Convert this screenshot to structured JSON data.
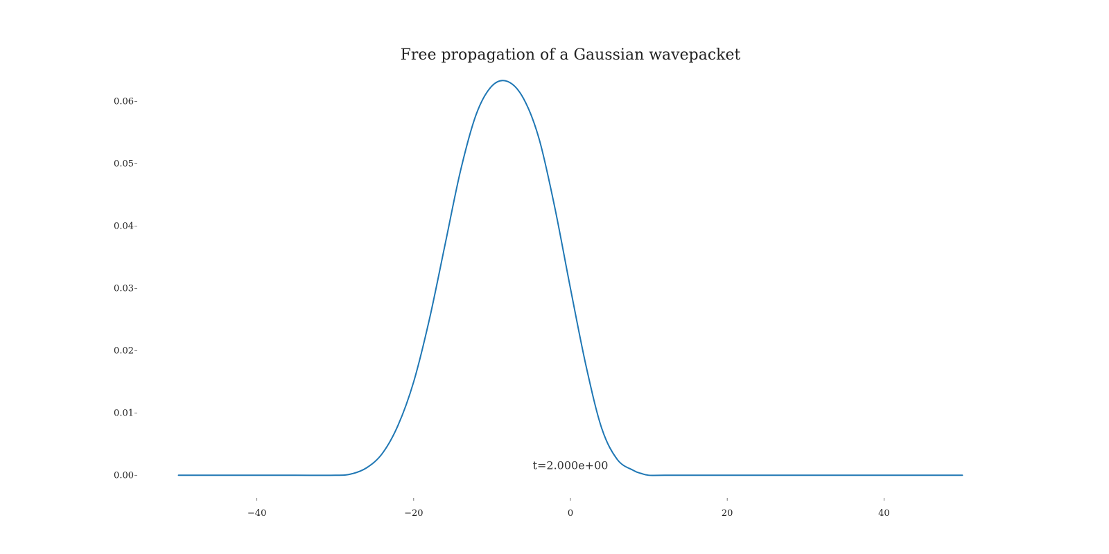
{
  "chart_data": {
    "type": "line",
    "title": "Free propagation of a Gaussian wavepacket",
    "xlabel": "",
    "ylabel": "",
    "xlim": [
      -55,
      55
    ],
    "ylim": [
      -0.0033,
      0.0655
    ],
    "x_ticks": [
      -40,
      -20,
      0,
      20,
      40
    ],
    "x_tick_labels": [
      "−40",
      "−20",
      "0",
      "20",
      "40"
    ],
    "y_ticks": [
      0.0,
      0.01,
      0.02,
      0.03,
      0.04,
      0.05,
      0.06
    ],
    "y_tick_labels": [
      "0.00",
      "0.01",
      "0.02",
      "0.03",
      "0.04",
      "0.05",
      "0.06"
    ],
    "grid": false,
    "line_color": "#1f77b4",
    "series": [
      {
        "x": [
          -50,
          -40,
          -35,
          -30,
          -28,
          -26,
          -24,
          -22,
          -20,
          -18,
          -16,
          -14,
          -12,
          -10,
          -8,
          -6,
          -4,
          -2,
          0,
          2,
          4,
          6,
          8,
          9,
          10,
          12,
          20,
          30,
          40,
          50
        ],
        "values": [
          0.0,
          0.0,
          0.0,
          0.0,
          0.0002,
          0.0012,
          0.0035,
          0.008,
          0.015,
          0.025,
          0.037,
          0.049,
          0.058,
          0.0625,
          0.0632,
          0.0605,
          0.054,
          0.043,
          0.03,
          0.0175,
          0.0075,
          0.0025,
          0.0008,
          0.0003,
          0.0,
          0.0,
          0.0,
          0.0,
          0.0,
          0.0
        ]
      }
    ],
    "annotations": [
      {
        "text": "t=2.000e+00",
        "x": 0,
        "y": 0.001
      }
    ]
  }
}
